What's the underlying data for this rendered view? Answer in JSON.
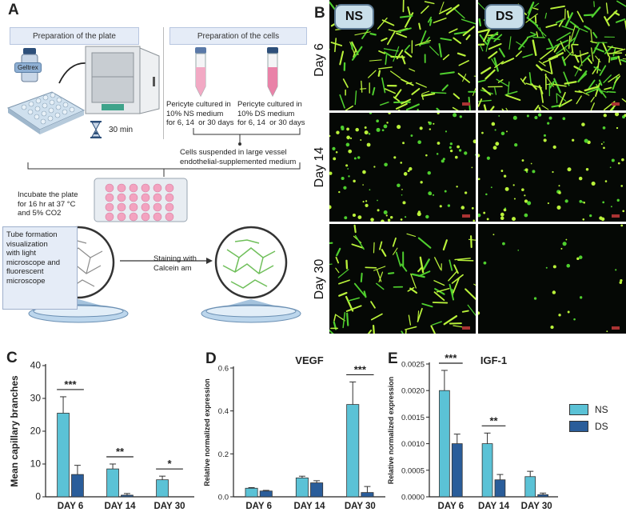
{
  "panel_letters": [
    "A",
    "B",
    "C",
    "D",
    "E"
  ],
  "schematic": {
    "plate_header": "Preparation of the plate",
    "cells_header": "Preparation of the cells",
    "geltrex_label": "Geltrex",
    "timer_label": "30 min",
    "ns_culture": "Pericyte cultured in\n10% NS medium\nfor 6, 14  or 30 days",
    "ds_culture": "Pericyte cultured in\n10% DS medium\nfor 6, 14  or 30 days",
    "suspension": "Cells suspended in large vessel\nendothelial-supplemented medium",
    "incubate": "Incubate the plate\nfor 16 hr at 37 °C\nand 5% CO2",
    "tube_box": "Tube formation\nvisualization\nwith light\nmicroscope and\nfluorescent\nmicroscope",
    "staining": "Staining with\nCalcein am"
  },
  "micrographs": {
    "columns": [
      "NS",
      "DS"
    ],
    "rows": [
      "Day 6",
      "Day 14",
      "Day 30"
    ]
  },
  "legend": [
    {
      "name": "NS",
      "color": "#5bc2d6"
    },
    {
      "name": "DS",
      "color": "#2a5d9a"
    }
  ],
  "chart_data": [
    {
      "type": "bar",
      "panel": "C",
      "title": "",
      "ylabel": "Mean capillary branches",
      "categories": [
        "DAY 6",
        "DAY 14",
        "DAY 30"
      ],
      "series": [
        {
          "name": "NS",
          "values": [
            25.5,
            8.5,
            5.2
          ],
          "errors": [
            5.0,
            1.5,
            1.1
          ]
        },
        {
          "name": "DS",
          "values": [
            6.8,
            0.5,
            0.0
          ],
          "errors": [
            2.8,
            0.5,
            0.0
          ]
        }
      ],
      "ylim": [
        0,
        40
      ],
      "yticks": [
        "0",
        "10",
        "20",
        "30",
        "40"
      ],
      "significance": [
        "***",
        "**",
        "*"
      ]
    },
    {
      "type": "bar",
      "panel": "D",
      "title": "VEGF",
      "ylabel": "Relative normalized expression",
      "categories": [
        "DAY 6",
        "DAY 14",
        "DAY 30"
      ],
      "series": [
        {
          "name": "NS",
          "values": [
            0.04,
            0.088,
            0.43
          ],
          "errors": [
            0.003,
            0.008,
            0.105
          ]
        },
        {
          "name": "DS",
          "values": [
            0.027,
            0.065,
            0.02
          ],
          "errors": [
            0.003,
            0.01,
            0.028
          ]
        }
      ],
      "ylim": [
        0,
        0.6
      ],
      "yticks": [
        "0.0",
        "0.2",
        "0.4",
        "0.6"
      ],
      "significance": [
        "",
        "",
        "***"
      ]
    },
    {
      "type": "bar",
      "panel": "E",
      "title": "IGF-1",
      "ylabel": "Relative normalized expression",
      "categories": [
        "DAY 6",
        "DAY 14",
        "DAY 30"
      ],
      "series": [
        {
          "name": "NS",
          "values": [
            0.002,
            0.001,
            0.00038
          ],
          "errors": [
            0.00038,
            0.0002,
            0.0001
          ]
        },
        {
          "name": "DS",
          "values": [
            0.001,
            0.00032,
            4e-05
          ],
          "errors": [
            0.00018,
            0.0001,
            3e-05
          ]
        }
      ],
      "ylim": [
        0,
        0.0025
      ],
      "yticks": [
        "0.0000",
        "0.0005",
        "0.0010",
        "0.0015",
        "0.0020",
        "0.0025"
      ],
      "significance": [
        "***",
        "**",
        ""
      ]
    }
  ]
}
